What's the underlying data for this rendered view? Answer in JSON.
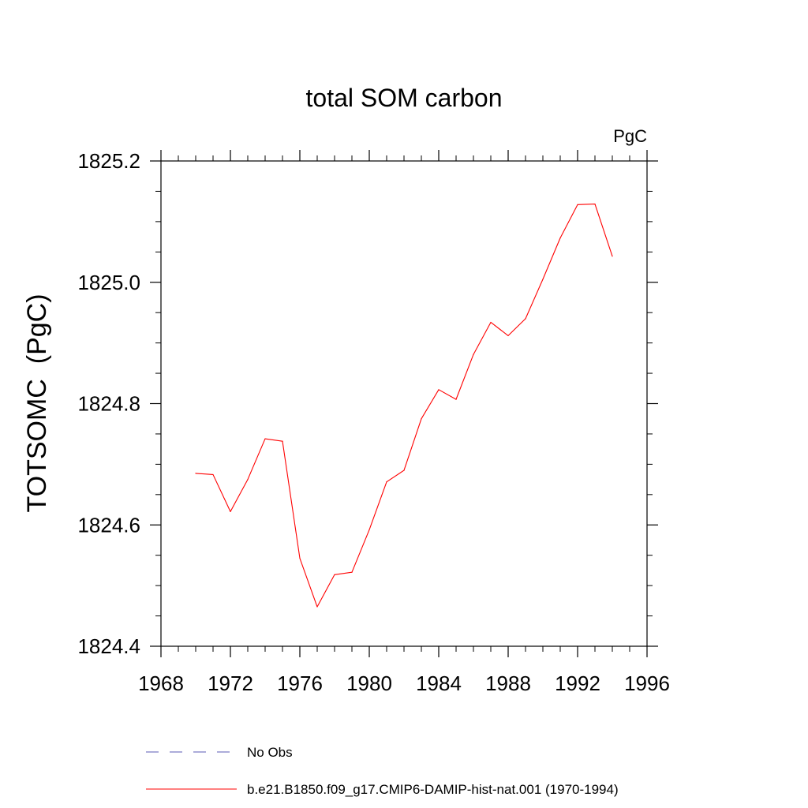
{
  "chart_data": {
    "type": "line",
    "title": "total SOM carbon",
    "units_label": "PgC",
    "ylabel": "TOTSOMC  (PgC)",
    "xlabel": "",
    "xlim": [
      1968,
      1996
    ],
    "ylim": [
      1824.4,
      1825.2
    ],
    "x_ticks": [
      1968,
      1972,
      1976,
      1980,
      1984,
      1988,
      1992,
      1996
    ],
    "x_tick_labels": [
      "1968",
      "1972",
      "1976",
      "1980",
      "1984",
      "1988",
      "1992",
      "1996"
    ],
    "x_minor_step": 1,
    "y_ticks": [
      1824.4,
      1824.6,
      1824.8,
      1825.0,
      1825.2
    ],
    "y_tick_labels": [
      "1824.4",
      "1824.6",
      "1824.8",
      "1825.0",
      "1825.2"
    ],
    "y_minor_step": 0.05,
    "grid": false,
    "legend_position": "bottom",
    "series": [
      {
        "name": "b.e21.B1850.f09_g17.CMIP6-DAMIP-hist-nat.001 (1970-1994)",
        "color": "#ff0000",
        "style": "solid",
        "x": [
          1970,
          1971,
          1972,
          1973,
          1974,
          1975,
          1976,
          1977,
          1978,
          1979,
          1980,
          1981,
          1982,
          1983,
          1984,
          1985,
          1986,
          1987,
          1988,
          1989,
          1990,
          1991,
          1992,
          1993,
          1994
        ],
        "y": [
          1824.685,
          1824.683,
          1824.622,
          1824.675,
          1824.742,
          1824.738,
          1824.545,
          1824.465,
          1824.518,
          1824.522,
          1824.592,
          1824.671,
          1824.69,
          1824.775,
          1824.823,
          1824.807,
          1824.881,
          1824.934,
          1824.912,
          1824.94,
          1825.005,
          1825.073,
          1825.128,
          1825.129,
          1825.043
        ]
      }
    ],
    "legend": [
      {
        "label": "No Obs",
        "color": "#5a5ab4",
        "style": "dashed"
      },
      {
        "label": "b.e21.B1850.f09_g17.CMIP6-DAMIP-hist-nat.001 (1970-1994)",
        "color": "#ff0000",
        "style": "solid"
      }
    ]
  }
}
